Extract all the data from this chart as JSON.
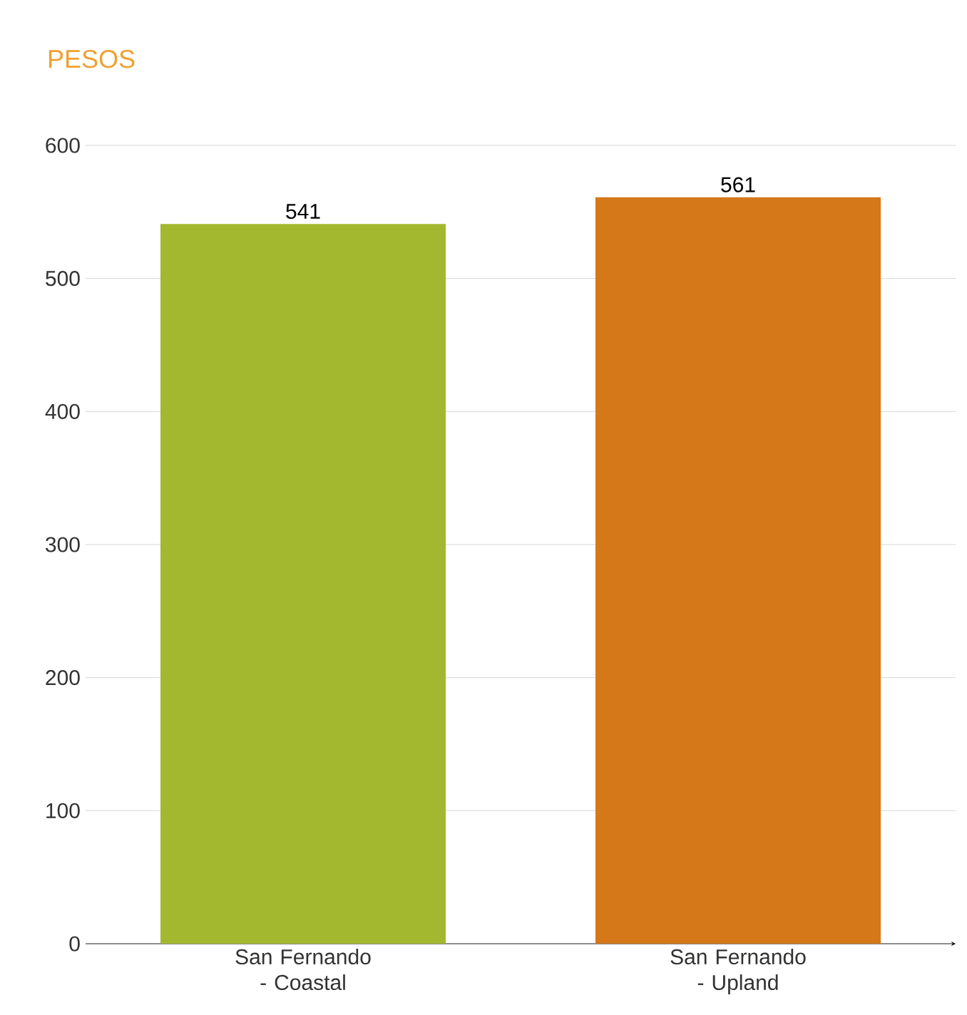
{
  "chart_data": {
    "type": "bar",
    "title": "PESOS",
    "categories": [
      "San Fernando - Coastal",
      "San Fernando - Upland"
    ],
    "values": [
      541,
      561
    ],
    "colors": [
      "#a3b82e",
      "#d4781a"
    ],
    "ylim": [
      0,
      600
    ],
    "yticks": [
      0,
      100,
      200,
      300,
      400,
      500,
      600
    ],
    "grid": "y",
    "data_labels": true
  }
}
